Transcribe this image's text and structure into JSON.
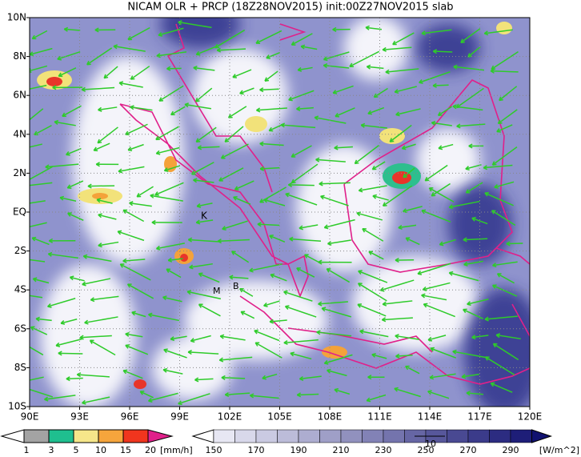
{
  "title": "NICAM OLR + PRCP (18Z28NOV2015) init:00Z27NOV2015 slab",
  "map": {
    "lat_labels": [
      "10N",
      "8N",
      "6N",
      "4N",
      "2N",
      "EQ",
      "2S",
      "4S",
      "6S",
      "8S",
      "10S"
    ],
    "lon_labels": [
      "90E",
      "93E",
      "96E",
      "99E",
      "102E",
      "105E",
      "108E",
      "111E",
      "114E",
      "117E",
      "120E"
    ],
    "station_labels": [
      "K",
      "B",
      "M"
    ]
  },
  "legend_precip": {
    "labels": [
      "1",
      "3",
      "5",
      "10",
      "15",
      "20"
    ],
    "unit": "[mm/h]"
  },
  "legend_olr": {
    "labels": [
      "150",
      "170",
      "190",
      "210",
      "230",
      "250",
      "270",
      "290"
    ],
    "unit": "[W/m^2]"
  },
  "vector_ref": "10"
}
